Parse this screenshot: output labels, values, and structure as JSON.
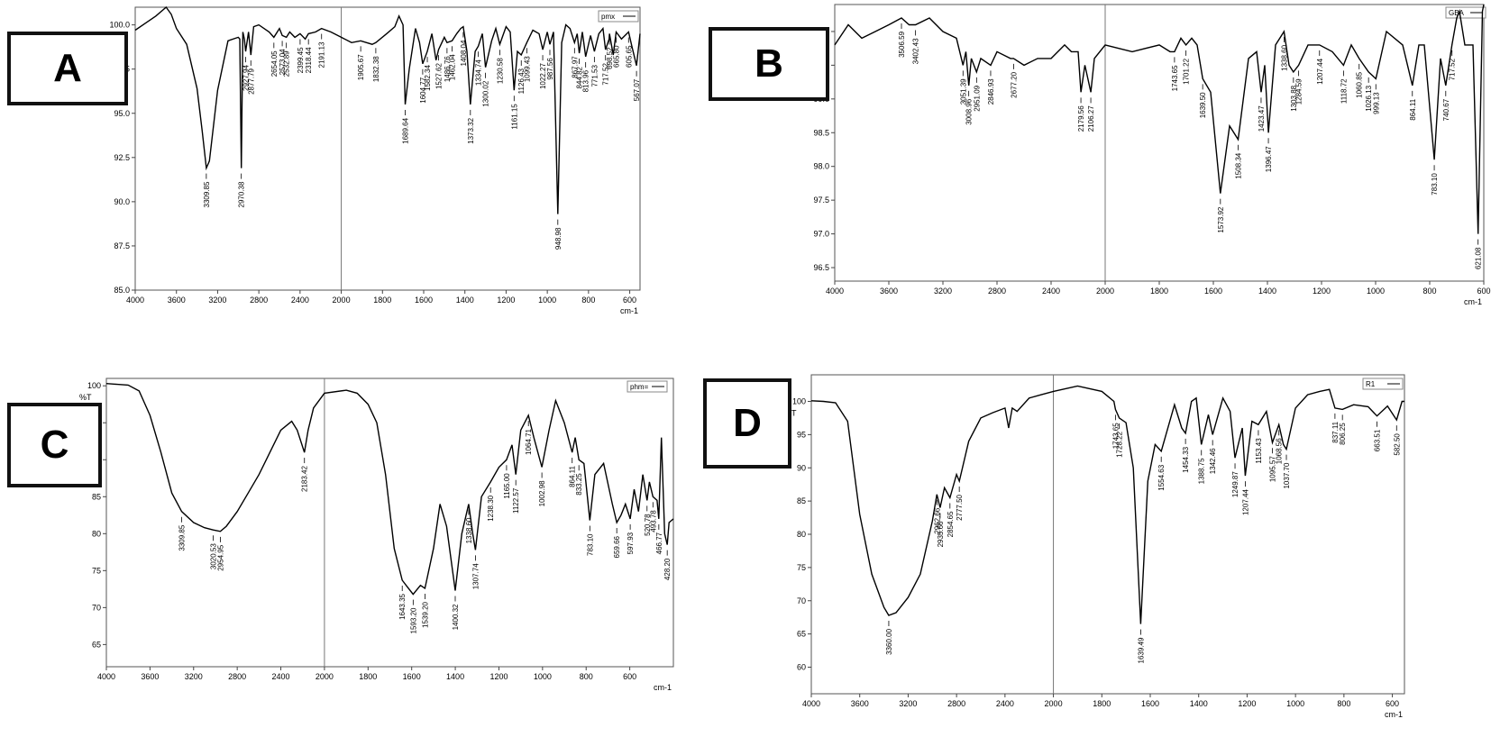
{
  "panels": [
    {
      "letter": "A",
      "chart_data": {
        "type": "line",
        "legend": "pmx",
        "ylabel": "%T",
        "xlabel": "cm-1",
        "xlim": [
          4000,
          550
        ],
        "ylim": [
          85.0,
          101.0
        ],
        "xticks": [
          4000,
          3600,
          3200,
          2800,
          2400,
          2000,
          1800,
          1600,
          1400,
          1200,
          1000,
          800,
          600
        ],
        "yticks": [
          85.0,
          87.5,
          90.0,
          92.5,
          95.0,
          97.5,
          100.0
        ],
        "ytick_labels": [
          "85.0",
          "87.5",
          "90.0",
          "92.5",
          "95.0",
          "97.5",
          "100.0"
        ],
        "x": [
          4000,
          3900,
          3800,
          3700,
          3650,
          3600,
          3500,
          3400,
          3350,
          3309.85,
          3280,
          3200,
          3100,
          3000,
          2985,
          2970.38,
          2955,
          2940,
          2927.94,
          2900,
          2877.79,
          2850,
          2800,
          2700,
          2654.05,
          2600,
          2573.04,
          2532.89,
          2500,
          2450,
          2399.45,
          2350,
          2318.44,
          2250,
          2191.13,
          2100,
          2000,
          1950,
          1905.67,
          1850,
          1832.38,
          1780,
          1740,
          1720,
          1700,
          1689.64,
          1670,
          1640,
          1620,
          1604.77,
          1582.34,
          1560,
          1540,
          1527.62,
          1500,
          1486.76,
          1462.04,
          1440,
          1420,
          1408.04,
          1390,
          1373.32,
          1350,
          1334.74,
          1315,
          1300.02,
          1270,
          1250,
          1230.58,
          1200,
          1180,
          1161.15,
          1145,
          1126.43,
          1099.43,
          1070,
          1040,
          1022.27,
          1000,
          987.56,
          970,
          948.98,
          930,
          910,
          890,
          867.97,
          855,
          844.82,
          830,
          813.96,
          790,
          771.53,
          750,
          730,
          717.52,
          700,
          698.52,
          680,
          665.8,
          640,
          605.65,
          590,
          567.07,
          550
        ],
        "y": [
          99.7,
          100.1,
          100.5,
          101.0,
          100.6,
          99.8,
          98.9,
          96.4,
          94.0,
          91.9,
          92.3,
          96.3,
          99.1,
          99.3,
          99.2,
          91.9,
          99.6,
          99.2,
          98.5,
          99.6,
          98.3,
          99.9,
          100.0,
          99.6,
          99.3,
          99.8,
          99.4,
          99.3,
          99.6,
          99.3,
          99.5,
          99.2,
          99.5,
          99.6,
          99.8,
          99.6,
          99.3,
          99.0,
          99.1,
          98.9,
          99.0,
          99.5,
          99.9,
          100.5,
          100.0,
          95.5,
          97.5,
          99.8,
          99.0,
          97.8,
          98.5,
          99.5,
          98.0,
          98.6,
          99.3,
          99.0,
          99.1,
          99.5,
          99.8,
          99.9,
          98.5,
          95.5,
          98.5,
          98.8,
          99.5,
          97.6,
          99.1,
          99.8,
          98.9,
          99.9,
          99.6,
          96.3,
          98.5,
          98.3,
          99.0,
          99.7,
          99.5,
          98.6,
          99.6,
          98.9,
          99.6,
          89.3,
          99.0,
          100.0,
          99.8,
          99.0,
          99.5,
          98.4,
          99.6,
          98.2,
          99.4,
          98.5,
          99.5,
          99.8,
          98.6,
          99.2,
          99.5,
          98.3,
          99.6,
          99.2,
          99.6,
          98.8,
          97.7,
          99.5
        ],
        "peak_labels": [
          "3309.85",
          "2970.38",
          "2927.94",
          "2877.79",
          "2654.05",
          "2573.04",
          "2532.89",
          "2399.45",
          "2318.44",
          "2191.13",
          "1905.67",
          "1832.38",
          "1689.64",
          "1604.77",
          "1582.34",
          "1527.62",
          "1486.76",
          "1462.04",
          "1408.04",
          "1373.32",
          "1334.74",
          "1300.02",
          "1230.58",
          "1161.15",
          "1126.43",
          "1099.43",
          "1022.27",
          "987.56",
          "948.98",
          "867.97",
          "844.82",
          "813.96",
          "771.53",
          "717.52",
          "698.52",
          "665.80",
          "605.65",
          "567.07"
        ]
      }
    },
    {
      "letter": "B",
      "chart_data": {
        "type": "line",
        "legend": "GBA",
        "ylabel": "%T",
        "xlabel": "cm-1",
        "xlim": [
          4000,
          600
        ],
        "ylim": [
          96.3,
          100.4
        ],
        "xticks": [
          4000,
          3600,
          3200,
          2800,
          2400,
          2000,
          1800,
          1600,
          1400,
          1200,
          1000,
          800,
          600
        ],
        "yticks": [
          96.5,
          97.0,
          97.5,
          98.0,
          98.5,
          99.0,
          99.5,
          100.0
        ],
        "ytick_labels": [
          "96.5",
          "97.0",
          "97.5",
          "98.0",
          "98.5",
          "99.0",
          "99.5",
          "100.0"
        ],
        "x": [
          4000,
          3900,
          3800,
          3700,
          3600,
          3506.59,
          3450,
          3402.43,
          3300,
          3200,
          3100,
          3051.39,
          3030,
          3008.96,
          2990,
          2951.09,
          2920,
          2846.93,
          2800,
          2700,
          2677.2,
          2600,
          2500,
          2400,
          2300,
          2250,
          2200,
          2179.56,
          2150,
          2106.27,
          2080,
          2000,
          1900,
          1800,
          1760,
          1743.65,
          1720,
          1701.22,
          1680,
          1660,
          1639.5,
          1610,
          1573.92,
          1540,
          1508.34,
          1470,
          1440,
          1423.47,
          1410,
          1396.47,
          1370,
          1338.6,
          1320,
          1303.88,
          1284.59,
          1250,
          1207.44,
          1160,
          1118.72,
          1090,
          1060.85,
          1026.13,
          999.13,
          960,
          900,
          864.11,
          840,
          820,
          783.1,
          760,
          740.67,
          717.52,
          700,
          690,
          670,
          640,
          621.08,
          605,
          600
        ],
        "y": [
          99.8,
          100.1,
          99.9,
          100.0,
          100.1,
          100.2,
          100.1,
          100.1,
          100.2,
          100.0,
          99.9,
          99.5,
          99.7,
          99.2,
          99.6,
          99.4,
          99.6,
          99.5,
          99.7,
          99.6,
          99.6,
          99.5,
          99.6,
          99.6,
          99.8,
          99.7,
          99.7,
          99.1,
          99.5,
          99.1,
          99.6,
          99.8,
          99.7,
          99.8,
          99.7,
          99.7,
          99.9,
          99.8,
          99.9,
          99.8,
          99.3,
          99.1,
          97.6,
          98.6,
          98.4,
          99.6,
          99.7,
          99.1,
          99.5,
          98.5,
          99.8,
          100.0,
          99.5,
          99.4,
          99.5,
          99.8,
          99.8,
          99.7,
          99.5,
          99.8,
          99.6,
          99.4,
          99.3,
          100.0,
          99.8,
          99.2,
          99.8,
          99.8,
          98.1,
          99.6,
          99.2,
          99.8,
          100.2,
          100.3,
          99.8,
          99.8,
          97.0,
          100.3,
          100.4
        ],
        "peak_labels": [
          "3506.59",
          "3402.43",
          "3051.39",
          "3008.96",
          "2951.09",
          "2846.93",
          "2677.20",
          "2179.56",
          "2106.27",
          "1743.65",
          "1701.22",
          "1639.50",
          "1573.92",
          "1508.34",
          "1423.47",
          "1396.47",
          "1338.60",
          "1303.88",
          "1284.59",
          "1207.44",
          "1118.72",
          "1060.85",
          "1026.13",
          "999.13",
          "864.11",
          "783.10",
          "740.67",
          "717.52",
          "621.08"
        ]
      }
    },
    {
      "letter": "C",
      "chart_data": {
        "type": "line",
        "legend": "phm=",
        "ylabel": "%T",
        "xlabel": "cm-1",
        "xlim": [
          4000,
          400
        ],
        "ylim": [
          62,
          101
        ],
        "xticks": [
          4000,
          3600,
          3200,
          2800,
          2400,
          2000,
          1800,
          1600,
          1400,
          1200,
          1000,
          800,
          600
        ],
        "yticks": [
          65,
          70,
          75,
          80,
          85,
          90,
          95,
          100
        ],
        "ytick_labels": [
          "65",
          "70",
          "75",
          "80",
          "85",
          "90",
          "95",
          "100"
        ],
        "x": [
          4000,
          3900,
          3800,
          3700,
          3600,
          3500,
          3400,
          3309.85,
          3200,
          3100,
          3020.53,
          2954.95,
          2900,
          2800,
          2700,
          2600,
          2500,
          2400,
          2300,
          2250,
          2183.42,
          2150,
          2100,
          2000,
          1900,
          1850,
          1800,
          1760,
          1720,
          1680,
          1643.35,
          1620,
          1593.2,
          1560,
          1539.2,
          1500,
          1470,
          1440,
          1400.32,
          1370,
          1338.6,
          1320,
          1307.74,
          1280,
          1238.3,
          1200,
          1165,
          1140,
          1122.57,
          1100,
          1064.71,
          1040,
          1002.98,
          970,
          940,
          900,
          864.11,
          850,
          833.25,
          810,
          783.1,
          760,
          720,
          680,
          659.66,
          640,
          620,
          597.93,
          580,
          560,
          540,
          520.78,
          510,
          493.78,
          475,
          466.77,
          455,
          440,
          428.2,
          420,
          400
        ],
        "y": [
          100.3,
          100.2,
          100.1,
          99.3,
          96.0,
          91.0,
          85.5,
          83.0,
          81.5,
          80.8,
          80.5,
          80.3,
          81.0,
          83.0,
          85.5,
          88.0,
          91.0,
          94.0,
          95.2,
          94.0,
          91.0,
          94.0,
          97.0,
          99.0,
          99.4,
          99.0,
          97.5,
          95.0,
          88.0,
          78.0,
          73.7,
          72.8,
          71.8,
          73.0,
          72.6,
          78.0,
          84.0,
          81.0,
          72.3,
          80.0,
          84.0,
          80.0,
          77.8,
          85.0,
          87.0,
          89.0,
          90.0,
          92.0,
          88.0,
          94.0,
          96.0,
          93.0,
          89.0,
          94.0,
          98.0,
          95.0,
          91.0,
          93.0,
          90.0,
          89.5,
          81.8,
          88.0,
          89.5,
          84.0,
          81.5,
          82.5,
          84.0,
          82.0,
          86.0,
          83.0,
          88.0,
          84.5,
          87.0,
          85.0,
          84.5,
          82.0,
          93.0,
          80.0,
          78.5,
          81.5,
          82.0
        ],
        "peak_labels": [
          "3309.85",
          "3020.53",
          "2954.95",
          "2183.42",
          "1643.35",
          "1593.20",
          "1539.20",
          "1400.32",
          "1338.60",
          "1307.74",
          "1238.30",
          "1165.00",
          "1122.57",
          "1064.71",
          "1002.98",
          "864.11",
          "833.25",
          "783.10",
          "659.66",
          "597.93",
          "520.78",
          "493.78",
          "466.77",
          "428.20"
        ]
      }
    },
    {
      "letter": "D",
      "chart_data": {
        "type": "line",
        "legend": "R1",
        "ylabel": "%T",
        "xlabel": "cm-1",
        "xlim": [
          4000,
          550
        ],
        "ylim": [
          56,
          104
        ],
        "xticks": [
          4000,
          3600,
          3200,
          2800,
          2400,
          2000,
          1800,
          1600,
          1400,
          1200,
          1000,
          800,
          600
        ],
        "yticks": [
          60,
          65,
          70,
          75,
          80,
          85,
          90,
          95,
          100
        ],
        "ytick_labels": [
          "60",
          "65",
          "70",
          "75",
          "80",
          "85",
          "90",
          "95",
          "100"
        ],
        "x": [
          4000,
          3900,
          3800,
          3700,
          3650,
          3600,
          3500,
          3400,
          3360,
          3300,
          3200,
          3100,
          3000,
          2962.66,
          2935.66,
          2900,
          2854.65,
          2800,
          2777.5,
          2700,
          2600,
          2500,
          2400,
          2370,
          2340,
          2300,
          2200,
          2100,
          2000,
          1900,
          1800,
          1750,
          1743.65,
          1728.22,
          1700,
          1670,
          1639.49,
          1610,
          1580,
          1554.63,
          1500,
          1470,
          1454.33,
          1430,
          1410,
          1388.75,
          1360,
          1342.46,
          1300,
          1270,
          1249.87,
          1220,
          1207.44,
          1180,
          1153.43,
          1120,
          1095.57,
          1068.56,
          1050,
          1037.7,
          1000,
          950,
          900,
          860,
          837.11,
          806.25,
          760,
          700,
          663.51,
          620,
          582.5,
          560,
          550
        ],
        "y": [
          100.1,
          100.0,
          99.8,
          97.0,
          90.0,
          83.0,
          74.0,
          69.0,
          67.8,
          68.2,
          70.5,
          74.0,
          82.0,
          86.0,
          84.0,
          87.0,
          85.5,
          89.0,
          88.0,
          94.0,
          97.5,
          98.3,
          99.0,
          96.0,
          99.0,
          98.5,
          100.5,
          101.0,
          101.5,
          102.3,
          101.5,
          100.0,
          98.8,
          97.5,
          96.8,
          90.0,
          66.5,
          88.0,
          93.5,
          92.5,
          99.5,
          96.0,
          95.2,
          100.0,
          100.5,
          93.5,
          98.0,
          95.0,
          100.5,
          98.5,
          91.5,
          96.0,
          88.8,
          97.0,
          96.5,
          98.5,
          93.8,
          96.5,
          93.5,
          92.8,
          99.0,
          101.0,
          101.5,
          101.8,
          99.0,
          98.8,
          99.5,
          99.2,
          97.8,
          99.3,
          97.2,
          100.0,
          100.0
        ],
        "peak_labels": [
          "3360.00",
          "2962.66",
          "2935.66",
          "2854.65",
          "2777.50",
          "1743.65",
          "1728.22",
          "1639.49",
          "1554.63",
          "1454.33",
          "1388.75",
          "1342.46",
          "1249.87",
          "1207.44",
          "1153.43",
          "1095.57",
          "1068.56",
          "1037.70",
          "837.11",
          "806.25",
          "663.51",
          "582.50"
        ]
      }
    }
  ]
}
